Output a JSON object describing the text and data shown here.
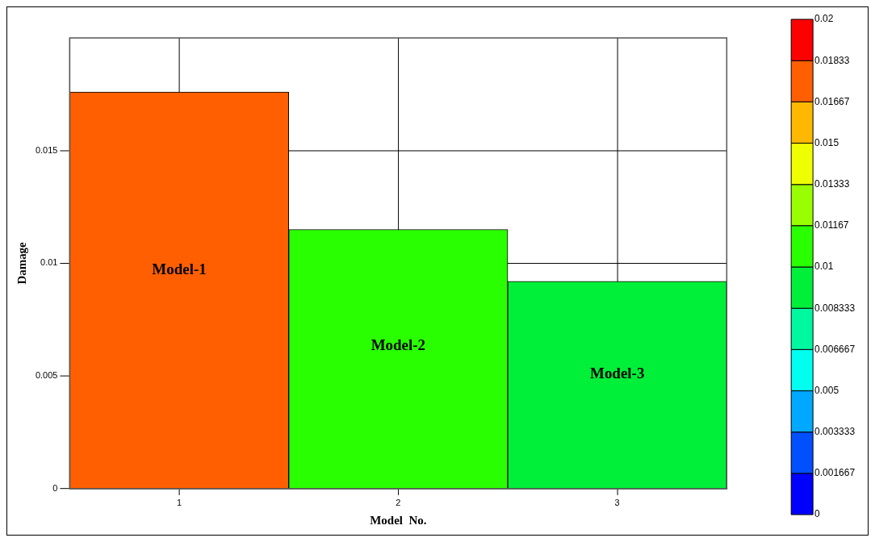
{
  "chart_data": {
    "type": "bar",
    "categories": [
      "1",
      "2",
      "3"
    ],
    "values": [
      0.0176,
      0.0115,
      0.0092
    ],
    "colors": [
      "#ff5f00",
      "#2aff00",
      "#00f03a"
    ],
    "xlabel": "Model  No.",
    "ylabel": "Damage",
    "ylim": [
      0,
      0.02
    ],
    "yticks": [
      0,
      0.005,
      0.01,
      0.015
    ],
    "grid": true,
    "legend": false,
    "clim": [
      0,
      0.02
    ],
    "cticks": [
      0,
      0.001667,
      0.003333,
      0.005,
      0.006667,
      0.008333,
      0.01,
      0.01167,
      0.01333,
      0.015,
      0.01667,
      0.01833,
      0.02
    ],
    "annotations": [
      "Model-1",
      "Model-2",
      "Model-3"
    ]
  }
}
